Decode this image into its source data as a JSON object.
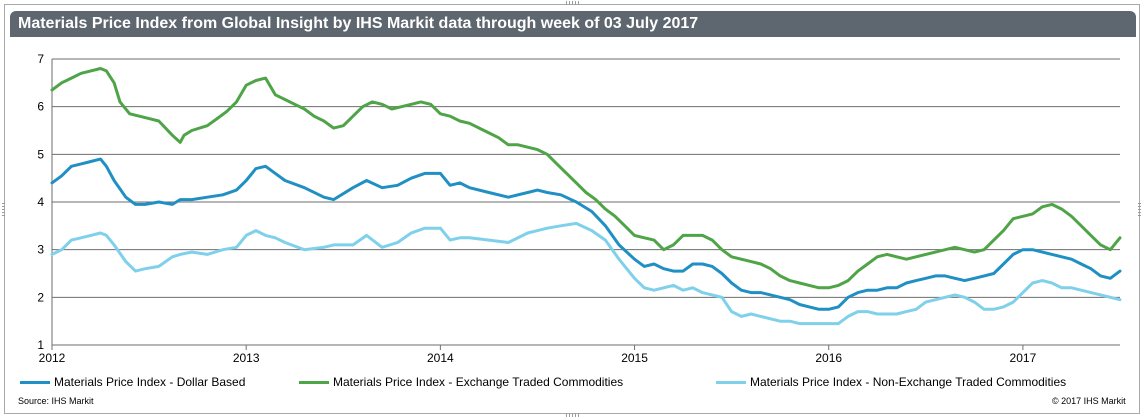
{
  "chart_data": {
    "type": "line",
    "title": "Materials Price Index from Global Insight by IHS Markit data through week of 03 July 2017",
    "xlabel": "",
    "ylabel": "",
    "x_range": [
      2012.0,
      2017.5
    ],
    "ylim": [
      1,
      7
    ],
    "y_ticks": [
      "1",
      "2",
      "3",
      "4",
      "5",
      "6",
      "7"
    ],
    "x_ticks": [
      {
        "value": 2012,
        "label": "2012"
      },
      {
        "value": 2013,
        "label": "2013"
      },
      {
        "value": 2014,
        "label": "2014"
      },
      {
        "value": 2015,
        "label": "2015"
      },
      {
        "value": 2016,
        "label": "2016"
      },
      {
        "value": 2017,
        "label": "2017"
      }
    ],
    "grid": "horizontal",
    "legend_position": "bottom",
    "series": [
      {
        "name": "Materials Price Index - Dollar Based",
        "color": "#1f8fc4",
        "x": [
          2012.0,
          2012.05,
          2012.1,
          2012.15,
          2012.2,
          2012.25,
          2012.28,
          2012.32,
          2012.38,
          2012.43,
          2012.48,
          2012.55,
          2012.62,
          2012.66,
          2012.72,
          2012.8,
          2012.88,
          2012.95,
          2013.0,
          2013.05,
          2013.1,
          2013.15,
          2013.2,
          2013.3,
          2013.4,
          2013.45,
          2013.55,
          2013.62,
          2013.7,
          2013.78,
          2013.85,
          2013.92,
          2014.0,
          2014.05,
          2014.1,
          2014.15,
          2014.25,
          2014.35,
          2014.45,
          2014.5,
          2014.55,
          2014.62,
          2014.7,
          2014.78,
          2014.85,
          2014.92,
          2015.0,
          2015.05,
          2015.1,
          2015.15,
          2015.2,
          2015.25,
          2015.3,
          2015.35,
          2015.4,
          2015.45,
          2015.5,
          2015.55,
          2015.6,
          2015.65,
          2015.7,
          2015.75,
          2015.8,
          2015.85,
          2015.9,
          2015.95,
          2016.0,
          2016.05,
          2016.1,
          2016.15,
          2016.2,
          2016.25,
          2016.3,
          2016.35,
          2016.4,
          2016.45,
          2016.5,
          2016.55,
          2016.6,
          2016.65,
          2016.7,
          2016.75,
          2016.8,
          2016.85,
          2016.9,
          2016.95,
          2017.0,
          2017.05,
          2017.1,
          2017.15,
          2017.2,
          2017.25,
          2017.3,
          2017.35,
          2017.4,
          2017.45,
          2017.5
        ],
        "values": [
          4.4,
          4.55,
          4.75,
          4.8,
          4.85,
          4.9,
          4.75,
          4.45,
          4.1,
          3.95,
          3.95,
          4.0,
          3.95,
          4.05,
          4.05,
          4.1,
          4.15,
          4.25,
          4.45,
          4.7,
          4.75,
          4.6,
          4.45,
          4.3,
          4.1,
          4.05,
          4.3,
          4.45,
          4.3,
          4.35,
          4.5,
          4.6,
          4.6,
          4.35,
          4.4,
          4.3,
          4.2,
          4.1,
          4.2,
          4.25,
          4.2,
          4.15,
          4.0,
          3.8,
          3.5,
          3.1,
          2.8,
          2.65,
          2.7,
          2.6,
          2.55,
          2.55,
          2.7,
          2.7,
          2.65,
          2.5,
          2.3,
          2.15,
          2.1,
          2.1,
          2.05,
          2.0,
          1.95,
          1.85,
          1.8,
          1.75,
          1.75,
          1.8,
          2.0,
          2.1,
          2.15,
          2.15,
          2.2,
          2.2,
          2.3,
          2.35,
          2.4,
          2.45,
          2.45,
          2.4,
          2.35,
          2.4,
          2.45,
          2.5,
          2.7,
          2.9,
          3.0,
          3.0,
          2.95,
          2.9,
          2.85,
          2.8,
          2.7,
          2.6,
          2.45,
          2.4,
          2.55
        ]
      },
      {
        "name": "Materials Price Index - Exchange Traded Commodities",
        "color": "#4ea447",
        "x": [
          2012.0,
          2012.05,
          2012.1,
          2012.15,
          2012.2,
          2012.25,
          2012.28,
          2012.32,
          2012.35,
          2012.4,
          2012.45,
          2012.5,
          2012.55,
          2012.62,
          2012.66,
          2012.68,
          2012.72,
          2012.8,
          2012.85,
          2012.9,
          2012.95,
          2013.0,
          2013.05,
          2013.1,
          2013.15,
          2013.2,
          2013.25,
          2013.3,
          2013.35,
          2013.4,
          2013.45,
          2013.5,
          2013.55,
          2013.6,
          2013.65,
          2013.7,
          2013.75,
          2013.8,
          2013.85,
          2013.9,
          2013.95,
          2014.0,
          2014.05,
          2014.1,
          2014.15,
          2014.2,
          2014.25,
          2014.3,
          2014.35,
          2014.4,
          2014.45,
          2014.5,
          2014.55,
          2014.6,
          2014.65,
          2014.7,
          2014.75,
          2014.8,
          2014.85,
          2014.9,
          2014.95,
          2015.0,
          2015.05,
          2015.1,
          2015.15,
          2015.2,
          2015.25,
          2015.3,
          2015.35,
          2015.4,
          2015.45,
          2015.5,
          2015.55,
          2015.6,
          2015.65,
          2015.7,
          2015.75,
          2015.8,
          2015.85,
          2015.9,
          2015.95,
          2016.0,
          2016.05,
          2016.1,
          2016.15,
          2016.2,
          2016.25,
          2016.3,
          2016.35,
          2016.4,
          2016.45,
          2016.5,
          2016.55,
          2016.6,
          2016.65,
          2016.7,
          2016.75,
          2016.8,
          2016.85,
          2016.9,
          2016.95,
          2017.0,
          2017.05,
          2017.1,
          2017.15,
          2017.2,
          2017.25,
          2017.3,
          2017.35,
          2017.4,
          2017.45,
          2017.5
        ],
        "values": [
          6.35,
          6.5,
          6.6,
          6.7,
          6.75,
          6.8,
          6.75,
          6.5,
          6.1,
          5.85,
          5.8,
          5.75,
          5.7,
          5.4,
          5.25,
          5.4,
          5.5,
          5.6,
          5.75,
          5.9,
          6.1,
          6.45,
          6.55,
          6.6,
          6.25,
          6.15,
          6.05,
          5.95,
          5.8,
          5.7,
          5.55,
          5.6,
          5.8,
          6.0,
          6.1,
          6.05,
          5.95,
          6.0,
          6.05,
          6.1,
          6.05,
          5.85,
          5.8,
          5.7,
          5.65,
          5.55,
          5.45,
          5.35,
          5.2,
          5.2,
          5.15,
          5.1,
          5.0,
          4.8,
          4.6,
          4.4,
          4.2,
          4.05,
          3.85,
          3.7,
          3.5,
          3.3,
          3.25,
          3.2,
          3.0,
          3.1,
          3.3,
          3.3,
          3.3,
          3.2,
          3.0,
          2.85,
          2.8,
          2.75,
          2.7,
          2.6,
          2.45,
          2.35,
          2.3,
          2.25,
          2.2,
          2.2,
          2.25,
          2.35,
          2.55,
          2.7,
          2.85,
          2.9,
          2.85,
          2.8,
          2.85,
          2.9,
          2.95,
          3.0,
          3.05,
          3.0,
          2.95,
          3.0,
          3.2,
          3.4,
          3.65,
          3.7,
          3.75,
          3.9,
          3.95,
          3.85,
          3.7,
          3.5,
          3.3,
          3.1,
          3.0,
          3.25
        ]
      },
      {
        "name": "Materials Price Index - Non-Exchange Traded Commodities",
        "color": "#7fd0ea",
        "x": [
          2012.0,
          2012.05,
          2012.1,
          2012.15,
          2012.2,
          2012.25,
          2012.28,
          2012.32,
          2012.38,
          2012.43,
          2012.48,
          2012.55,
          2012.62,
          2012.66,
          2012.72,
          2012.8,
          2012.88,
          2012.95,
          2013.0,
          2013.05,
          2013.1,
          2013.15,
          2013.2,
          2013.3,
          2013.4,
          2013.45,
          2013.55,
          2013.62,
          2013.7,
          2013.78,
          2013.85,
          2013.92,
          2014.0,
          2014.05,
          2014.1,
          2014.15,
          2014.25,
          2014.35,
          2014.45,
          2014.5,
          2014.55,
          2014.62,
          2014.7,
          2014.78,
          2014.85,
          2014.92,
          2015.0,
          2015.05,
          2015.1,
          2015.15,
          2015.2,
          2015.25,
          2015.3,
          2015.35,
          2015.4,
          2015.45,
          2015.5,
          2015.55,
          2015.6,
          2015.65,
          2015.7,
          2015.75,
          2015.8,
          2015.85,
          2015.9,
          2015.95,
          2016.0,
          2016.05,
          2016.1,
          2016.15,
          2016.2,
          2016.25,
          2016.3,
          2016.35,
          2016.4,
          2016.45,
          2016.5,
          2016.55,
          2016.6,
          2016.65,
          2016.7,
          2016.75,
          2016.8,
          2016.85,
          2016.9,
          2016.95,
          2017.0,
          2017.05,
          2017.1,
          2017.15,
          2017.2,
          2017.25,
          2017.3,
          2017.35,
          2017.4,
          2017.45,
          2017.5
        ],
        "values": [
          2.9,
          3.0,
          3.2,
          3.25,
          3.3,
          3.35,
          3.3,
          3.1,
          2.75,
          2.55,
          2.6,
          2.65,
          2.85,
          2.9,
          2.95,
          2.9,
          3.0,
          3.05,
          3.3,
          3.4,
          3.3,
          3.25,
          3.15,
          3.0,
          3.05,
          3.1,
          3.1,
          3.3,
          3.05,
          3.15,
          3.35,
          3.45,
          3.45,
          3.2,
          3.25,
          3.25,
          3.2,
          3.15,
          3.35,
          3.4,
          3.45,
          3.5,
          3.55,
          3.4,
          3.2,
          2.8,
          2.4,
          2.2,
          2.15,
          2.2,
          2.25,
          2.15,
          2.2,
          2.1,
          2.05,
          2.0,
          1.7,
          1.6,
          1.65,
          1.6,
          1.55,
          1.5,
          1.5,
          1.45,
          1.45,
          1.45,
          1.45,
          1.45,
          1.6,
          1.7,
          1.7,
          1.65,
          1.65,
          1.65,
          1.7,
          1.75,
          1.9,
          1.95,
          2.0,
          2.05,
          2.0,
          1.9,
          1.75,
          1.75,
          1.8,
          1.9,
          2.1,
          2.3,
          2.35,
          2.3,
          2.2,
          2.2,
          2.15,
          2.1,
          2.05,
          2.0,
          1.95
        ]
      }
    ]
  },
  "legend": [
    {
      "label": "Materials Price Index - Dollar Based",
      "color": "#1f8fc4"
    },
    {
      "label": "Materials Price Index - Exchange Traded Commodities",
      "color": "#4ea447"
    },
    {
      "label": "Materials Price Index - Non-Exchange Traded Commodities",
      "color": "#7fd0ea"
    }
  ],
  "footer": {
    "source": "Source: IHS Markit",
    "copyright": "© 2017 IHS Markit"
  }
}
